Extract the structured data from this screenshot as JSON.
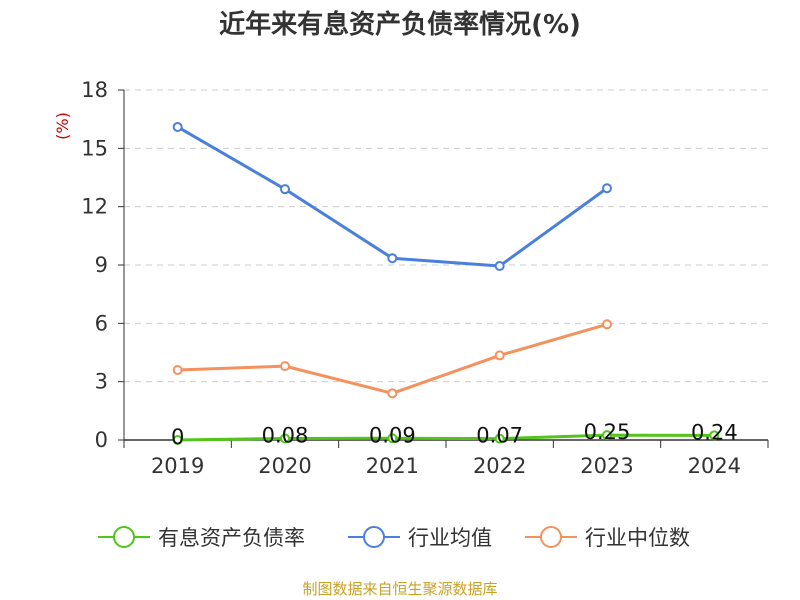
{
  "chart_data": {
    "type": "line",
    "title": "近年来有息资产负债率情况(%)",
    "ylabel": "(%)",
    "xlabel": "",
    "categories": [
      "2019",
      "2020",
      "2021",
      "2022",
      "2023",
      "2024"
    ],
    "ylim": [
      0,
      18
    ],
    "yticks": [
      0,
      3,
      6,
      9,
      12,
      15,
      18
    ],
    "grid": true,
    "legend_position": "bottom",
    "series": [
      {
        "name": "有息资产负债率",
        "color": "#52c41a",
        "values": [
          0,
          0.08,
          0.09,
          0.07,
          0.25,
          0.24
        ],
        "labels": [
          "0",
          "0.08",
          "0.09",
          "0.07",
          "0.25",
          "0.24"
        ]
      },
      {
        "name": "行业均值",
        "color": "#4a7fdc",
        "values": [
          16.1,
          12.9,
          9.35,
          8.95,
          12.95,
          null
        ]
      },
      {
        "name": "行业中位数",
        "color": "#f4915c",
        "values": [
          3.6,
          3.8,
          2.4,
          4.35,
          5.95,
          null
        ]
      }
    ],
    "source": "制图数据来自恒生聚源数据库",
    "colors": {
      "ylabel": "#cc0000",
      "source": "#c9a227",
      "axis": "#333333",
      "grid": "#cccccc"
    }
  }
}
